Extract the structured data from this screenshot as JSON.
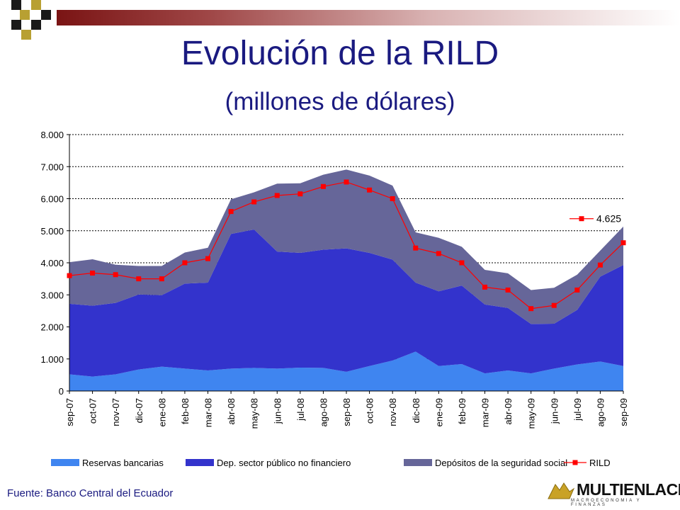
{
  "title": "Evolución de la RILD",
  "subtitle": "(millones de dólares)",
  "source": "Fuente: Banco Central del Ecuador",
  "logo": {
    "name": "MULTIENLACE",
    "tagline": "MACROECONOMIA Y FINANZAS"
  },
  "colors": {
    "reservas": "#3f85f0",
    "dep_publico": "#3333cc",
    "seguridad_social": "#666699",
    "rild": "#ff0000",
    "title": "#1a1a80",
    "topbar": "#7a1414",
    "deco_dark": "#1a1a1a",
    "deco_gold": "#b8a032"
  },
  "chart_data": {
    "type": "area",
    "categories": [
      "sep-07",
      "oct-07",
      "nov-07",
      "dic-07",
      "ene-08",
      "feb-08",
      "mar-08",
      "abr-08",
      "may-08",
      "jun-08",
      "jul-08",
      "ago-08",
      "sep-08",
      "oct-08",
      "nov-08",
      "dic-08",
      "ene-09",
      "feb-09",
      "mar-09",
      "abr-09",
      "may-09",
      "jun-09",
      "jul-09",
      "ago-09",
      "sep-09"
    ],
    "ylim": [
      0,
      8000
    ],
    "yticks": [
      0,
      1000,
      2000,
      3000,
      4000,
      5000,
      6000,
      7000,
      8000
    ],
    "ytick_labels": [
      "0",
      "1.000",
      "2.000",
      "3.000",
      "4.000",
      "5.000",
      "6.000",
      "7.000",
      "8.000"
    ],
    "grid": true,
    "legend_position": "bottom",
    "stacked": true,
    "series": [
      {
        "name": "Reservas bancarias",
        "type": "area",
        "values": [
          520,
          450,
          520,
          670,
          760,
          700,
          640,
          700,
          720,
          700,
          730,
          720,
          600,
          780,
          950,
          1230,
          780,
          840,
          550,
          640,
          550,
          700,
          830,
          920,
          780
        ]
      },
      {
        "name": "Dep. sector público no financiero",
        "type": "area",
        "values": [
          2200,
          2210,
          2230,
          2340,
          2230,
          2650,
          2740,
          4200,
          4320,
          3650,
          3580,
          3690,
          3850,
          3530,
          3150,
          2150,
          2330,
          2450,
          2150,
          1950,
          1540,
          1400,
          1700,
          2650,
          3150
        ]
      },
      {
        "name": "Depósitos de la seguridad social",
        "type": "area",
        "values": [
          1300,
          1450,
          1190,
          890,
          910,
          970,
          1090,
          1080,
          1160,
          2120,
          2170,
          2340,
          2460,
          2410,
          2310,
          1570,
          1670,
          1210,
          1080,
          1080,
          1060,
          1120,
          1100,
          810,
          1200
        ]
      },
      {
        "name": "RILD",
        "type": "line",
        "values": [
          3600,
          3680,
          3630,
          3500,
          3500,
          4000,
          4130,
          5600,
          5900,
          6100,
          6150,
          6380,
          6520,
          6270,
          6000,
          4460,
          4290,
          4000,
          3240,
          3150,
          2570,
          2670,
          3150,
          3930,
          4625
        ]
      }
    ],
    "annotations": [
      {
        "series": "RILD",
        "text": "4.625"
      }
    ]
  }
}
